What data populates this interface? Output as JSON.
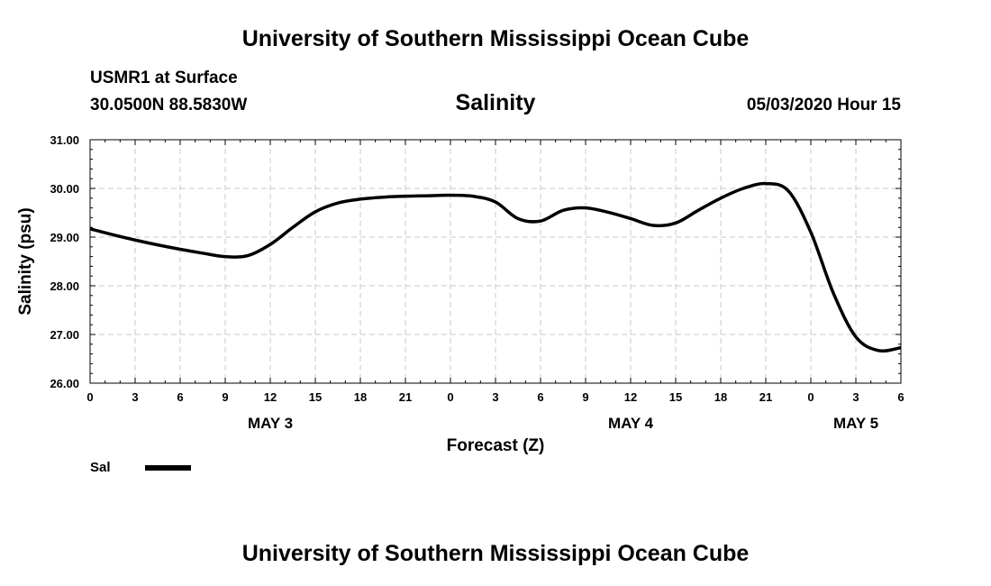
{
  "header_title": "University of Southern Mississippi Ocean Cube",
  "footer_title": "University of Southern Mississippi Ocean Cube",
  "station": "USMR1 at Surface",
  "coords": "30.0500N 88.5830W",
  "datetime": "05/03/2020 Hour 15",
  "chart_data": {
    "type": "line",
    "title": "Salinity",
    "xlabel": "Forecast (Z)",
    "ylabel": "Salinity (psu)",
    "ylim": [
      26,
      31
    ],
    "xlim": [
      0,
      54
    ],
    "grid": true,
    "legend_position": "bottom-left",
    "x_tick_labels": [
      "0",
      "3",
      "6",
      "9",
      "12",
      "15",
      "18",
      "21",
      "0",
      "3",
      "6",
      "9",
      "12",
      "15",
      "18",
      "21",
      "0",
      "3",
      "6"
    ],
    "y_tick_labels": [
      "26.00",
      "27.00",
      "28.00",
      "29.00",
      "30.00",
      "31.00"
    ],
    "day_labels": [
      {
        "text": "MAY 3",
        "hour": 12
      },
      {
        "text": "MAY 4",
        "hour": 36
      },
      {
        "text": "MAY 5",
        "hour": 51
      }
    ],
    "series": [
      {
        "name": "Sal",
        "color": "#000000",
        "x": [
          0,
          1.5,
          3,
          4.5,
          6,
          7.5,
          9,
          10.5,
          12,
          13.5,
          15,
          16.5,
          18,
          19.5,
          21,
          22.5,
          24,
          25.5,
          27,
          28.5,
          30,
          31.5,
          33,
          34.5,
          36,
          37.5,
          39,
          40.5,
          42,
          43.5,
          45,
          46.5,
          48,
          49.5,
          51,
          52.5,
          54
        ],
        "values": [
          29.17,
          29.05,
          28.94,
          28.84,
          28.75,
          28.67,
          28.6,
          28.62,
          28.85,
          29.2,
          29.52,
          29.7,
          29.78,
          29.82,
          29.84,
          29.85,
          29.86,
          29.84,
          29.72,
          29.38,
          29.33,
          29.55,
          29.6,
          29.51,
          29.38,
          29.24,
          29.29,
          29.55,
          29.8,
          30.0,
          30.1,
          29.95,
          29.1,
          27.85,
          26.95,
          26.67,
          26.73
        ]
      }
    ]
  }
}
